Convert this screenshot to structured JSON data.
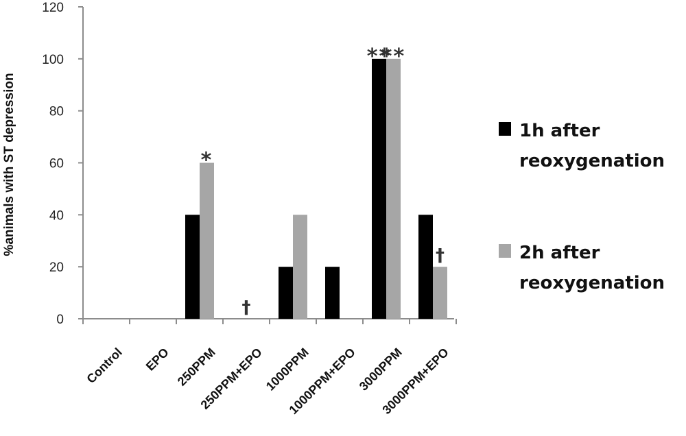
{
  "chart_data": {
    "type": "bar",
    "title": "",
    "xlabel": "",
    "ylabel": "%animals with ST depression",
    "ylim": [
      0,
      120
    ],
    "yticks": [
      0,
      20,
      40,
      60,
      80,
      100,
      120
    ],
    "grid": false,
    "legend_position": "right",
    "categories": [
      "Control",
      "EPO",
      "250PPM",
      "250PPM+EPO",
      "1000PPM",
      "1000PPM+EPO",
      "3000PPM",
      "3000PPM+EPO"
    ],
    "series": [
      {
        "name": "1h after reoxygenation",
        "name_lines": [
          "1h after",
          "reoxygenation"
        ],
        "color": "#000000",
        "values": [
          0,
          0,
          40,
          0,
          20,
          20,
          100,
          40
        ]
      },
      {
        "name": "2h after reoxygenation",
        "name_lines": [
          "2h after",
          "reoxygenation"
        ],
        "color": "#a6a6a6",
        "values": [
          0,
          0,
          60,
          0,
          40,
          0,
          100,
          20
        ]
      }
    ],
    "annotations": [
      {
        "category": "250PPM",
        "series": 1,
        "text": "*"
      },
      {
        "category": "250PPM+EPO",
        "series": -1,
        "text": "†"
      },
      {
        "category": "3000PPM",
        "series": 0,
        "text": "**"
      },
      {
        "category": "3000PPM",
        "series": 1,
        "text": "**"
      },
      {
        "category": "3000PPM+EPO",
        "series": 1,
        "text": "†"
      }
    ]
  }
}
